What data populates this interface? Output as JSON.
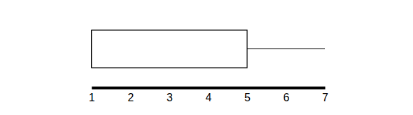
{
  "chart_data": {
    "type": "box",
    "orientation": "horizontal",
    "min": 1,
    "q1": 1,
    "median": 1,
    "q3": 5,
    "max": 7,
    "xlim": [
      1,
      7
    ],
    "xticks": [
      1,
      2,
      3,
      4,
      5,
      6,
      7
    ]
  }
}
